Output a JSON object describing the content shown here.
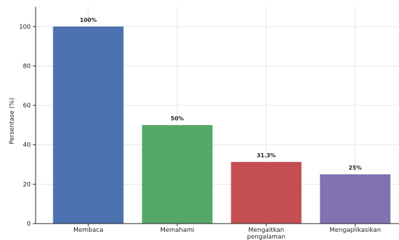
{
  "chart_data": {
    "type": "bar",
    "ylabel": "Persentase (%)",
    "xlabel": "",
    "ylim": [
      0,
      110
    ],
    "yticks": [
      0,
      20,
      40,
      60,
      80,
      100
    ],
    "grid": true,
    "categories": [
      "Membaca",
      "Memahami",
      "Mengaitkan pengalaman",
      "Mengaplikasikan"
    ],
    "category_label_lines": [
      [
        "Membaca"
      ],
      [
        "Memahami"
      ],
      [
        "Mengaitkan",
        "pengalaman"
      ],
      [
        "Mengaplikasikan"
      ]
    ],
    "values": [
      100,
      50,
      31.3,
      25
    ],
    "data_labels": [
      "100%",
      "50%",
      "31.3%",
      "25%"
    ],
    "colors": [
      "#4c72b0",
      "#55a868",
      "#c44e52",
      "#8172b2"
    ]
  }
}
